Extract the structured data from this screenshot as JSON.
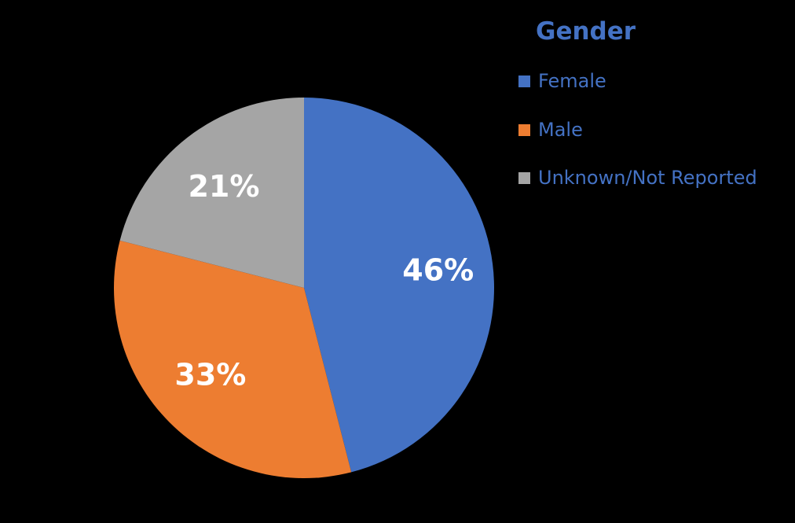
{
  "chart_data": {
    "type": "pie",
    "title": "Gender",
    "categories": [
      "Female",
      "Male",
      "Unknown/Not Reported"
    ],
    "values": [
      46,
      33,
      21
    ],
    "value_labels": [
      "46%",
      "33%",
      "21%"
    ],
    "colors": [
      "#4472c4",
      "#ed7d31",
      "#a5a5a5"
    ],
    "legend_position": "top-right"
  },
  "legend": {
    "title": "Gender",
    "items": [
      {
        "label": "Female",
        "color": "#4472c4"
      },
      {
        "label": "Male",
        "color": "#ed7d31"
      },
      {
        "label": "Unknown/Not Reported",
        "color": "#a5a5a5"
      }
    ]
  }
}
